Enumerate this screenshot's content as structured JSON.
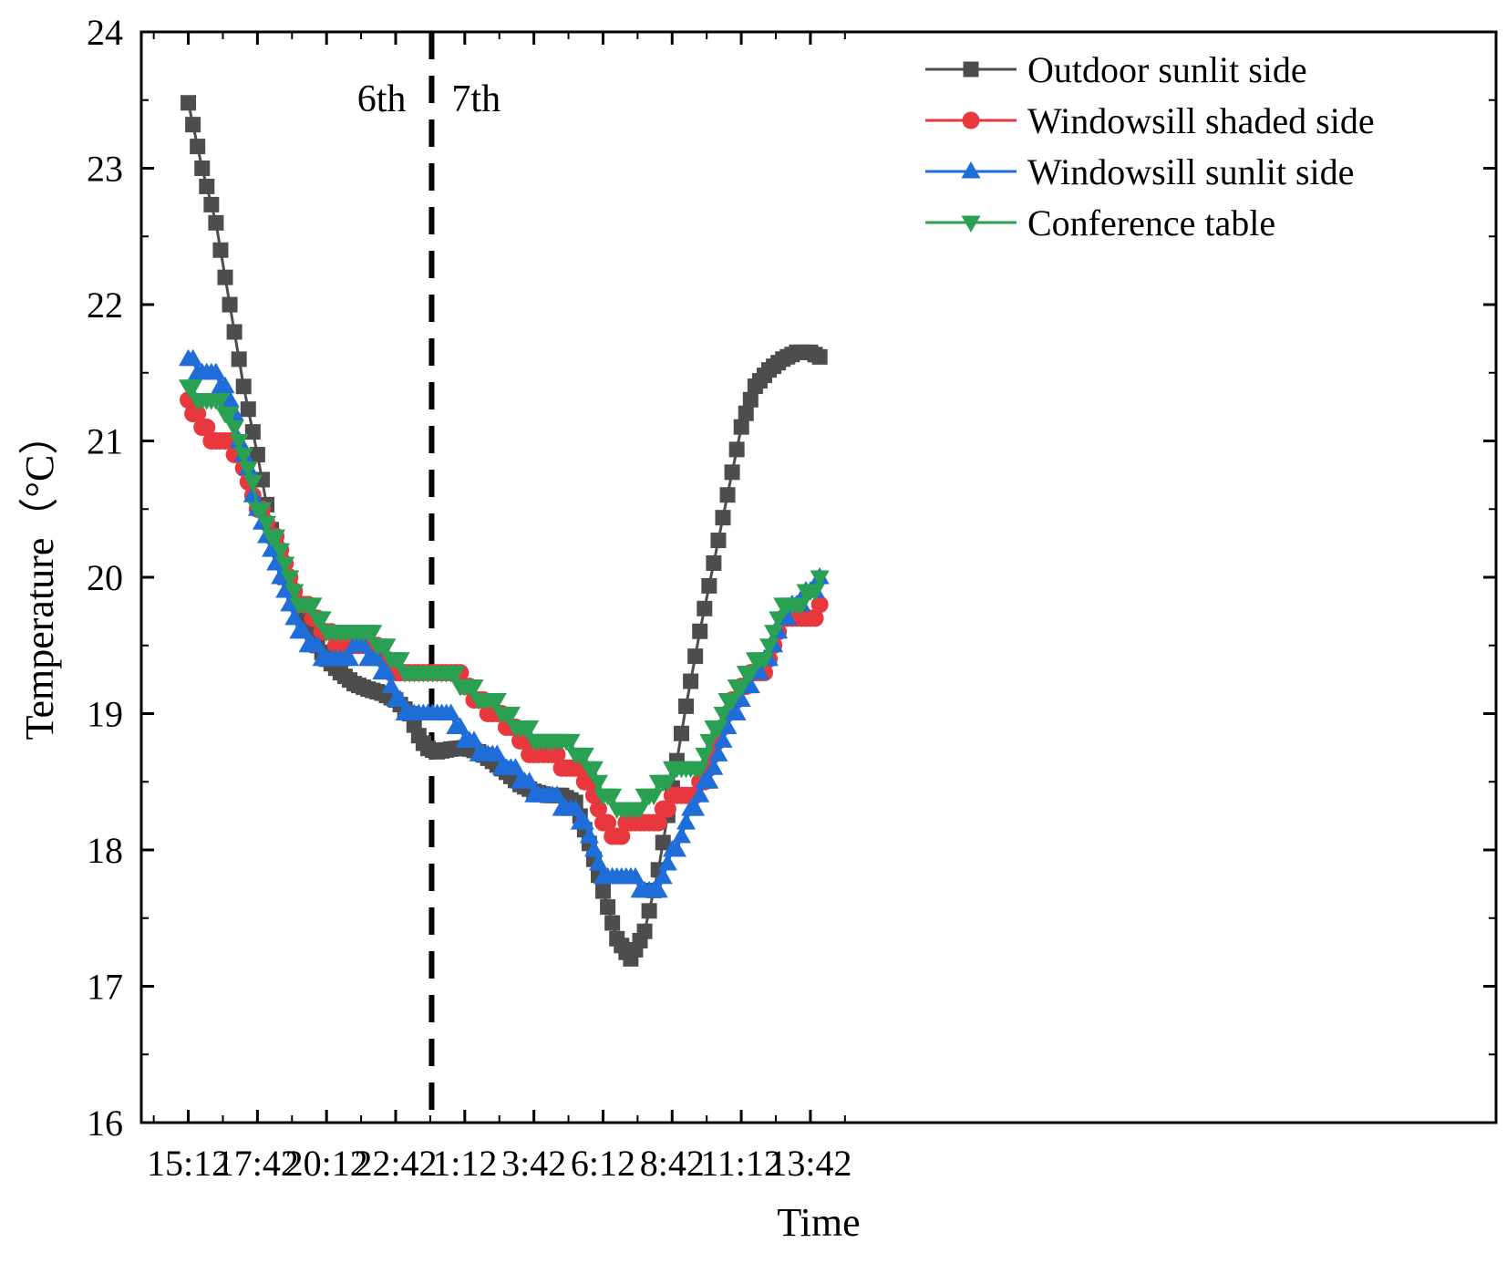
{
  "chart_data": {
    "type": "line",
    "xlabel": "Time",
    "ylabel": "Temperature（°C）",
    "ylim": [
      16,
      24
    ],
    "yticks": [
      16,
      17,
      18,
      19,
      20,
      21,
      22,
      23,
      24
    ],
    "xlim_hours": [
      -1.7,
      47.3
    ],
    "xticks": [
      {
        "h": 0,
        "label": "15:12"
      },
      {
        "h": 2.5,
        "label": "17:42"
      },
      {
        "h": 5,
        "label": "20:12"
      },
      {
        "h": 7.5,
        "label": "22:42"
      },
      {
        "h": 10,
        "label": "1:12"
      },
      {
        "h": 12.5,
        "label": "3:42"
      },
      {
        "h": 15,
        "label": "6:12"
      },
      {
        "h": 17.5,
        "label": "8:42"
      },
      {
        "h": 20,
        "label": "11:12"
      },
      {
        "h": 22.5,
        "label": "13:42"
      }
    ],
    "divider": {
      "h": 8.8,
      "left_label": "6th",
      "right_label": "7th"
    },
    "series": [
      {
        "name": "Outdoor sunlit side",
        "color": "#4d4d4d",
        "marker": "square",
        "points": [
          [
            0,
            23.48
          ],
          [
            0.5,
            23.0
          ],
          [
            1,
            22.6
          ],
          [
            1.5,
            22.0
          ],
          [
            2,
            21.4
          ],
          [
            2.5,
            20.9
          ],
          [
            3,
            20.35
          ],
          [
            3.5,
            20.0
          ],
          [
            4,
            19.75
          ],
          [
            4.5,
            19.55
          ],
          [
            5,
            19.4
          ],
          [
            5.5,
            19.3
          ],
          [
            6,
            19.22
          ],
          [
            6.5,
            19.18
          ],
          [
            7,
            19.15
          ],
          [
            7.5,
            19.1
          ],
          [
            8,
            19.0
          ],
          [
            8.3,
            18.85
          ],
          [
            8.6,
            18.75
          ],
          [
            9,
            18.72
          ],
          [
            9.5,
            18.74
          ],
          [
            10,
            18.75
          ],
          [
            10.5,
            18.72
          ],
          [
            11,
            18.65
          ],
          [
            11.5,
            18.57
          ],
          [
            12,
            18.48
          ],
          [
            12.5,
            18.43
          ],
          [
            13,
            18.4
          ],
          [
            13.5,
            18.4
          ],
          [
            14,
            18.35
          ],
          [
            14.5,
            18.05
          ],
          [
            15,
            17.7
          ],
          [
            15.5,
            17.35
          ],
          [
            16,
            17.2
          ],
          [
            16.5,
            17.4
          ],
          [
            17,
            17.85
          ],
          [
            17.5,
            18.45
          ],
          [
            18,
            19.05
          ],
          [
            18.5,
            19.6
          ],
          [
            19,
            20.1
          ],
          [
            19.5,
            20.6
          ],
          [
            20,
            21.1
          ],
          [
            20.5,
            21.4
          ],
          [
            21,
            21.52
          ],
          [
            21.5,
            21.6
          ],
          [
            22,
            21.65
          ],
          [
            22.5,
            21.65
          ],
          [
            23,
            21.6
          ]
        ]
      },
      {
        "name": "Windowsill shaded side",
        "color": "#e8383d",
        "marker": "circle",
        "points": [
          [
            0,
            21.3
          ],
          [
            0.3,
            21.2
          ],
          [
            0.6,
            21.1
          ],
          [
            1,
            21.0
          ],
          [
            1.5,
            21.0
          ],
          [
            2,
            20.85
          ],
          [
            2.5,
            20.55
          ],
          [
            3,
            20.35
          ],
          [
            3.5,
            20.1
          ],
          [
            4,
            19.85
          ],
          [
            4.5,
            19.75
          ],
          [
            5,
            19.6
          ],
          [
            5.5,
            19.5
          ],
          [
            6,
            19.5
          ],
          [
            6.5,
            19.5
          ],
          [
            7,
            19.45
          ],
          [
            7.5,
            19.3
          ],
          [
            8,
            19.25
          ],
          [
            8.5,
            19.25
          ],
          [
            9,
            19.3
          ],
          [
            9.5,
            19.3
          ],
          [
            10,
            19.25
          ],
          [
            10.5,
            19.1
          ],
          [
            11,
            19.0
          ],
          [
            11.5,
            18.95
          ],
          [
            12,
            18.85
          ],
          [
            12.5,
            18.7
          ],
          [
            13,
            18.7
          ],
          [
            13.5,
            18.65
          ],
          [
            14,
            18.6
          ],
          [
            14.5,
            18.5
          ],
          [
            15,
            18.2
          ],
          [
            15.5,
            18.1
          ],
          [
            16,
            18.2
          ],
          [
            16.5,
            18.15
          ],
          [
            17,
            18.2
          ],
          [
            17.5,
            18.35
          ],
          [
            18,
            18.4
          ],
          [
            18.5,
            18.45
          ],
          [
            19,
            18.7
          ],
          [
            19.5,
            19.0
          ],
          [
            20,
            19.2
          ],
          [
            20.5,
            19.3
          ],
          [
            21,
            19.35
          ],
          [
            21.5,
            19.7
          ],
          [
            22,
            19.7
          ],
          [
            22.5,
            19.7
          ],
          [
            23,
            19.8
          ]
        ]
      },
      {
        "name": "Windowsill sunlit side",
        "color": "#1f6dd8",
        "marker": "triangle-up",
        "points": [
          [
            0,
            21.6
          ],
          [
            0.5,
            21.5
          ],
          [
            1,
            21.5
          ],
          [
            1.5,
            21.3
          ],
          [
            2,
            20.9
          ],
          [
            2.5,
            20.5
          ],
          [
            3,
            20.25
          ],
          [
            3.5,
            19.9
          ],
          [
            4,
            19.65
          ],
          [
            4.5,
            19.5
          ],
          [
            5,
            19.42
          ],
          [
            5.5,
            19.42
          ],
          [
            6,
            19.45
          ],
          [
            6.5,
            19.45
          ],
          [
            7,
            19.35
          ],
          [
            7.5,
            19.1
          ],
          [
            8,
            19.0
          ],
          [
            8.5,
            19.0
          ],
          [
            9,
            19.02
          ],
          [
            9.5,
            19.0
          ],
          [
            10,
            18.85
          ],
          [
            10.5,
            18.75
          ],
          [
            11,
            18.7
          ],
          [
            11.5,
            18.6
          ],
          [
            12,
            18.55
          ],
          [
            12.5,
            18.45
          ],
          [
            13,
            18.35
          ],
          [
            13.5,
            18.35
          ],
          [
            14,
            18.3
          ],
          [
            14.5,
            18.1
          ],
          [
            15,
            17.8
          ],
          [
            15.5,
            17.75
          ],
          [
            16,
            17.8
          ],
          [
            16.5,
            17.7
          ],
          [
            17,
            17.65
          ],
          [
            17.5,
            17.95
          ],
          [
            18,
            18.2
          ],
          [
            18.5,
            18.4
          ],
          [
            19,
            18.6
          ],
          [
            19.5,
            18.9
          ],
          [
            20,
            19.1
          ],
          [
            20.5,
            19.3
          ],
          [
            21,
            19.4
          ],
          [
            21.5,
            19.7
          ],
          [
            22,
            19.8
          ],
          [
            22.5,
            19.9
          ],
          [
            23,
            20.0
          ]
        ]
      },
      {
        "name": "Conference table",
        "color": "#2aa052",
        "marker": "triangle-down",
        "points": [
          [
            0,
            21.4
          ],
          [
            0.5,
            21.3
          ],
          [
            1,
            21.3
          ],
          [
            1.5,
            21.2
          ],
          [
            2,
            20.9
          ],
          [
            2.5,
            20.55
          ],
          [
            3,
            20.35
          ],
          [
            3.5,
            20.1
          ],
          [
            4,
            19.85
          ],
          [
            4.5,
            19.78
          ],
          [
            5,
            19.65
          ],
          [
            5.5,
            19.58
          ],
          [
            6,
            19.58
          ],
          [
            6.5,
            19.6
          ],
          [
            7,
            19.5
          ],
          [
            7.5,
            19.4
          ],
          [
            8,
            19.3
          ],
          [
            8.5,
            19.28
          ],
          [
            9,
            19.3
          ],
          [
            9.5,
            19.28
          ],
          [
            10,
            19.2
          ],
          [
            10.5,
            19.15
          ],
          [
            11,
            19.08
          ],
          [
            11.5,
            19.0
          ],
          [
            12,
            18.92
          ],
          [
            12.5,
            18.82
          ],
          [
            13,
            18.8
          ],
          [
            13.5,
            18.82
          ],
          [
            14,
            18.75
          ],
          [
            14.5,
            18.65
          ],
          [
            15,
            18.42
          ],
          [
            15.5,
            18.35
          ],
          [
            16,
            18.3
          ],
          [
            16.5,
            18.35
          ],
          [
            17,
            18.45
          ],
          [
            17.5,
            18.55
          ],
          [
            18,
            18.6
          ],
          [
            18.5,
            18.6
          ],
          [
            19,
            18.85
          ],
          [
            19.5,
            19.05
          ],
          [
            20,
            19.2
          ],
          [
            20.5,
            19.35
          ],
          [
            21,
            19.45
          ],
          [
            21.5,
            19.75
          ],
          [
            22,
            19.8
          ],
          [
            22.5,
            19.9
          ],
          [
            23,
            20.0
          ]
        ]
      }
    ]
  }
}
